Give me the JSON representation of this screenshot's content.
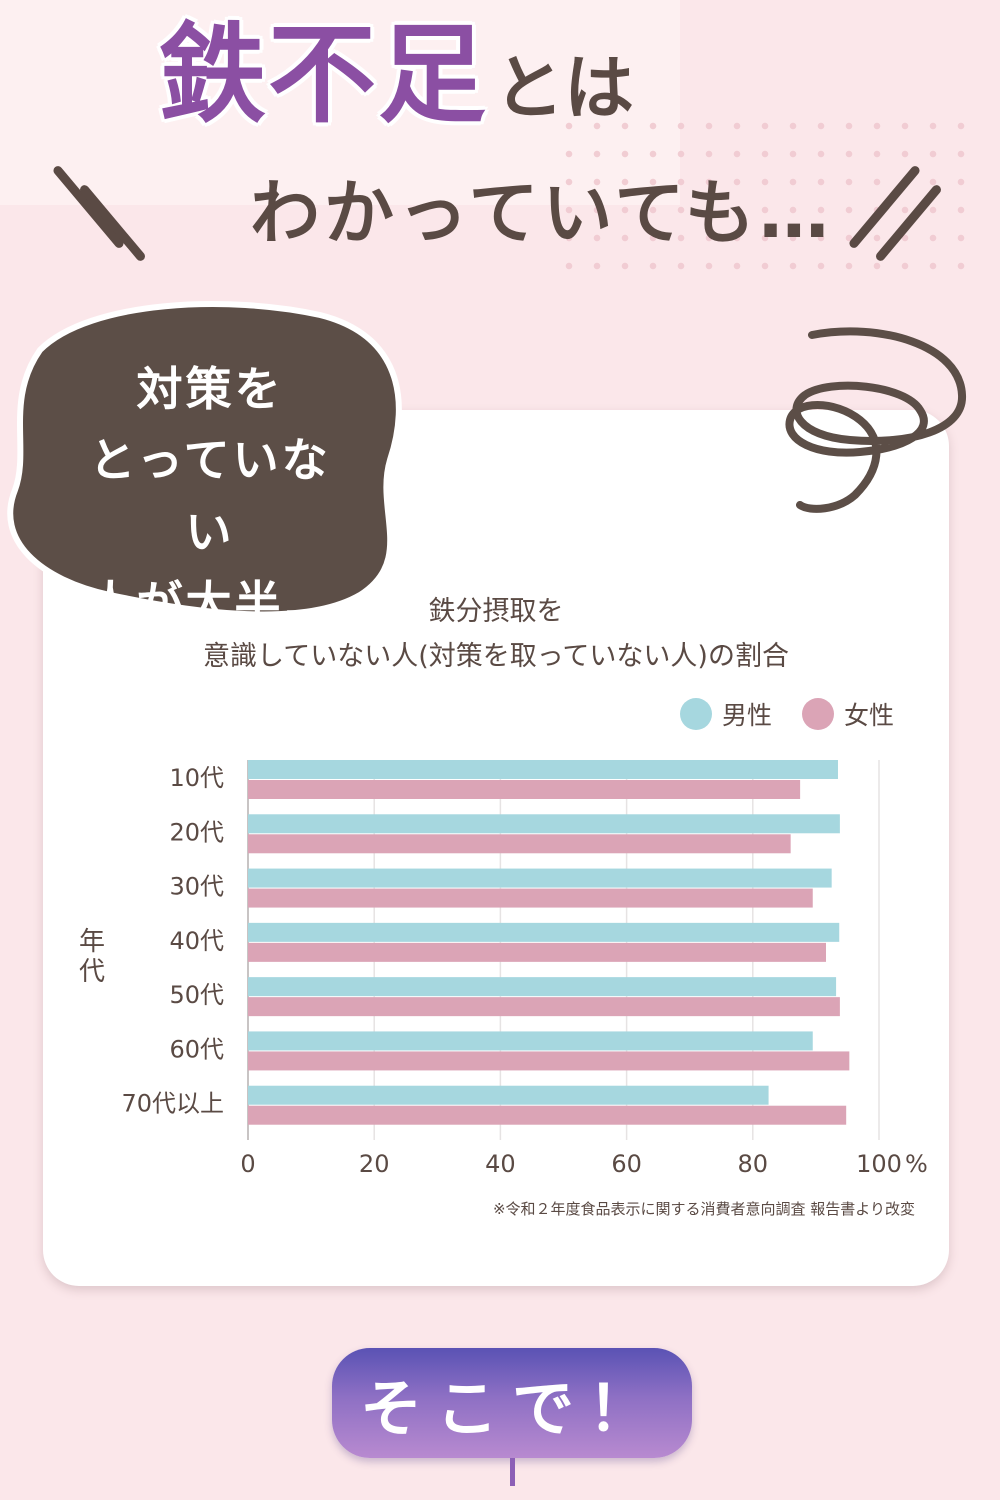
{
  "header": {
    "title_emphasis": "鉄不足",
    "title_suffix": "とは",
    "subtitle": "わかっていても…"
  },
  "bubble": {
    "lines": [
      "対策を",
      "とっていない",
      "人が大半…"
    ]
  },
  "colors": {
    "male": "#a6d7df",
    "female": "#dba4b6",
    "text": "#5a4a44",
    "accent": "#8b4fa3",
    "bubble": "#5c4e47"
  },
  "chart_data": {
    "type": "bar",
    "orientation": "horizontal",
    "title_lines": [
      "鉄分摂取を",
      "意識していない人(対策を取っていない人)の割合"
    ],
    "ylabel": "年代",
    "xlim": [
      0,
      100
    ],
    "x_ticks": [
      "0",
      "20",
      "40",
      "60",
      "80",
      "100"
    ],
    "x_unit": "%",
    "categories": [
      "10代",
      "20代",
      "30代",
      "40代",
      "50代",
      "60代",
      "70代以上"
    ],
    "series": [
      {
        "name": "男性",
        "values": [
          93.5,
          93.8,
          92.5,
          93.7,
          93.2,
          89.5,
          82.5
        ]
      },
      {
        "name": "女性",
        "values": [
          87.5,
          86.0,
          89.5,
          91.6,
          93.8,
          95.3,
          94.8
        ]
      }
    ],
    "grid": true,
    "legend_position": "top-right",
    "footnote": "※令和２年度食品表示に関する消費者意向調査 報告書より改変"
  },
  "cta": {
    "label": "そこで！"
  }
}
